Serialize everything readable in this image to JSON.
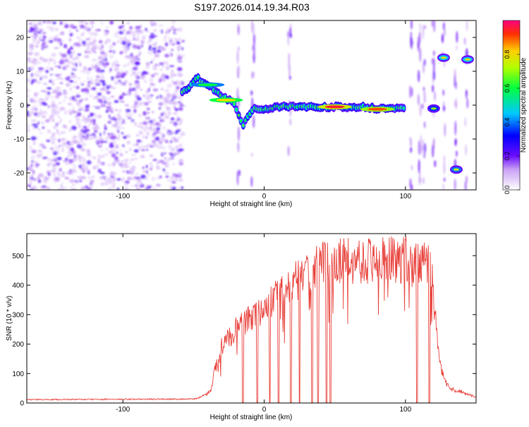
{
  "title": "S197.2026.014.19.34.R03",
  "colors": {
    "background": "#ffffff",
    "axis": "#000000",
    "snr_line": "#e8413b",
    "speck": "#8a2be2"
  },
  "chart_data": [
    {
      "type": "heatmap",
      "name": "spectrogram",
      "xlabel": "Height of straight line (km)",
      "ylabel": "Frequency (Hz)",
      "xlim": [
        -168,
        150
      ],
      "ylim": [
        -25,
        25
      ],
      "x_ticks": [
        -100,
        0,
        100
      ],
      "x_tick_labels": [
        "-100",
        "0",
        "100"
      ],
      "y_ticks": [
        20,
        10,
        0,
        -10,
        -20
      ],
      "y_tick_labels": [
        "20",
        "10",
        "0",
        "-10",
        "-20"
      ],
      "noise_region": [
        -168,
        -57
      ],
      "trace": {
        "x": [
          -58,
          -52,
          -47,
          -43,
          -38,
          -33,
          -28,
          -23,
          -20,
          -15,
          -8,
          0,
          10,
          20,
          30,
          40,
          50,
          60,
          70,
          80,
          90,
          100
        ],
        "y": [
          3.5,
          6,
          8,
          6.5,
          5.5,
          4,
          2,
          1.5,
          -1,
          -6,
          -1,
          -1,
          -0.5,
          -0.5,
          -0.5,
          -0.5,
          -0.5,
          -0.5,
          -0.5,
          -1,
          -1,
          -0.5
        ]
      },
      "hot_spots": [
        {
          "x": 50,
          "y": -0.5,
          "level": 0.95
        },
        {
          "x": 80,
          "y": -1.2,
          "level": 0.9
        },
        {
          "x": -27,
          "y": 1.5,
          "level": 0.8
        },
        {
          "x": -40,
          "y": 6,
          "level": 0.6
        }
      ],
      "isolated_blobs": [
        {
          "x": 120,
          "y": -1,
          "level": 0.5
        },
        {
          "x": 127,
          "y": 14,
          "level": 0.6
        },
        {
          "x": 144,
          "y": 13.5,
          "level": 0.6
        },
        {
          "x": 136,
          "y": -19,
          "level": 0.55
        }
      ],
      "vertical_streaks_x": [
        -18,
        -8,
        18,
        104,
        110,
        113,
        120,
        127,
        136,
        143
      ],
      "colorbar": {
        "label": "Normalized spectral amplitude",
        "range": [
          0,
          1
        ],
        "ticks": [
          "0.0",
          "0.2",
          "0.4",
          "0.6",
          "0.8"
        ]
      }
    },
    {
      "type": "line",
      "name": "snr",
      "xlabel": "Height of straight line (km)",
      "ylabel": "SNR (10 * v/v)",
      "xlim": [
        -168,
        150
      ],
      "ylim": [
        0,
        575
      ],
      "x_ticks": [
        -100,
        0,
        100
      ],
      "x_tick_labels": [
        "-100",
        "0",
        "100"
      ],
      "y_ticks": [
        0,
        100,
        200,
        300,
        400,
        500
      ],
      "y_tick_labels": [
        "0",
        "100",
        "200",
        "300",
        "400",
        "500"
      ],
      "envelope_x": [
        -168,
        -50,
        -45,
        -38,
        -35,
        -30,
        -20,
        -10,
        0,
        10,
        20,
        30,
        40,
        50,
        60,
        80,
        100,
        118,
        122,
        125,
        130,
        135,
        140,
        150
      ],
      "envelope_y": [
        12,
        14,
        20,
        40,
        120,
        200,
        260,
        300,
        330,
        380,
        420,
        460,
        490,
        500,
        505,
        505,
        505,
        505,
        250,
        120,
        60,
        45,
        40,
        20
      ],
      "spread": 0.2,
      "dropouts_x": [
        -15,
        -5,
        4,
        10,
        19,
        25,
        34,
        38,
        44,
        47,
        108,
        117
      ]
    }
  ]
}
